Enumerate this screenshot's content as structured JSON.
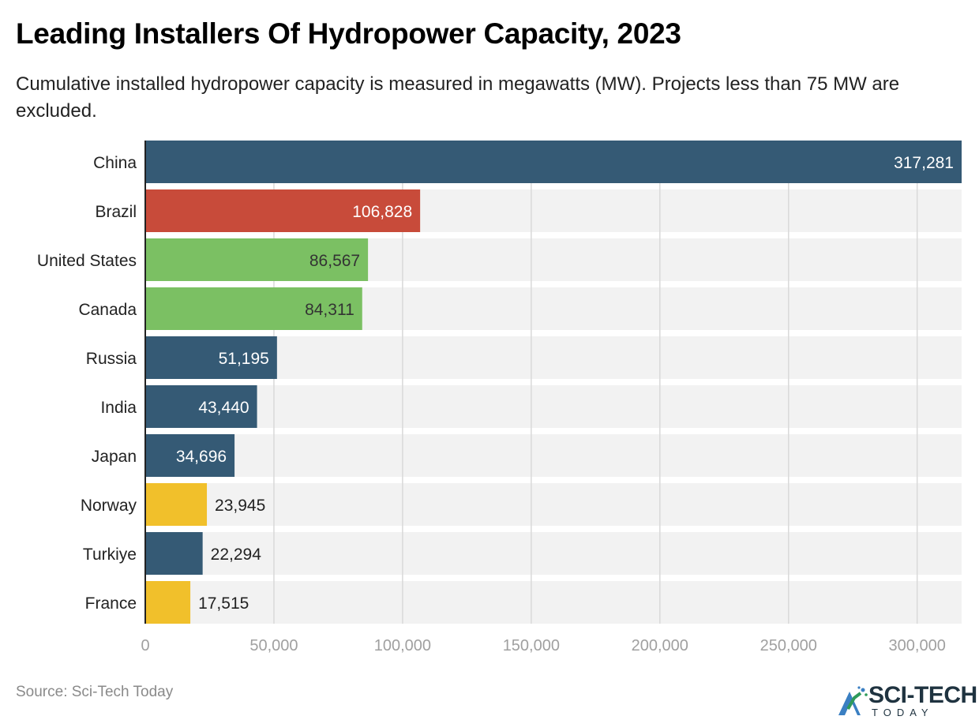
{
  "header": {
    "title": "Leading Installers Of Hydropower Capacity, 2023",
    "subtitle": "Cumulative installed hydropower capacity is measured in megawatts (MW). Projects less than 75 MW are excluded."
  },
  "footer": {
    "source": "Source: Sci-Tech Today",
    "logo_main": "SCI-TECH",
    "logo_sub": "TODAY",
    "logo_icon": "sci-tech-logo-icon"
  },
  "colors": {
    "navy": "#355a75",
    "red": "#c84b3a",
    "green": "#7bc063",
    "yellow": "#f1c02b",
    "track": "#f2f2f2",
    "grid": "#d9d9d9",
    "axis": "#222222",
    "tick_text": "#a0a0a0"
  },
  "chart_data": {
    "type": "bar",
    "orientation": "horizontal",
    "title": "Leading Installers Of Hydropower Capacity, 2023",
    "subtitle": "Cumulative installed hydropower capacity is measured in megawatts (MW). Projects less than 75 MW are excluded.",
    "xlabel": "",
    "ylabel": "",
    "unit": "MW",
    "categories": [
      "China",
      "Brazil",
      "United States",
      "Canada",
      "Russia",
      "India",
      "Japan",
      "Norway",
      "Turkiye",
      "France"
    ],
    "values": [
      317281,
      106828,
      86567,
      84311,
      51195,
      43440,
      34696,
      23945,
      22294,
      17515
    ],
    "labels": [
      "317,281",
      "106,828",
      "86,567",
      "84,311",
      "51,195",
      "43,440",
      "34,696",
      "23,945",
      "22,294",
      "17,515"
    ],
    "bar_colors": [
      "#355a75",
      "#c84b3a",
      "#7bc063",
      "#7bc063",
      "#355a75",
      "#355a75",
      "#355a75",
      "#f1c02b",
      "#355a75",
      "#f1c02b"
    ],
    "label_colors": [
      "#ffffff",
      "#ffffff",
      "#333333",
      "#333333",
      "#ffffff",
      "#ffffff",
      "#ffffff",
      "#222222",
      "#222222",
      "#222222"
    ],
    "label_inside": [
      true,
      true,
      true,
      true,
      true,
      true,
      true,
      false,
      false,
      false
    ],
    "xlim": [
      0,
      317281
    ],
    "xticks": [
      0,
      50000,
      100000,
      150000,
      200000,
      250000,
      300000
    ],
    "xtick_labels": [
      "0",
      "50,000",
      "100,000",
      "150,000",
      "200,000",
      "250,000",
      "300,000"
    ],
    "grid": true,
    "legend": "none",
    "source": "Source: Sci-Tech Today"
  }
}
